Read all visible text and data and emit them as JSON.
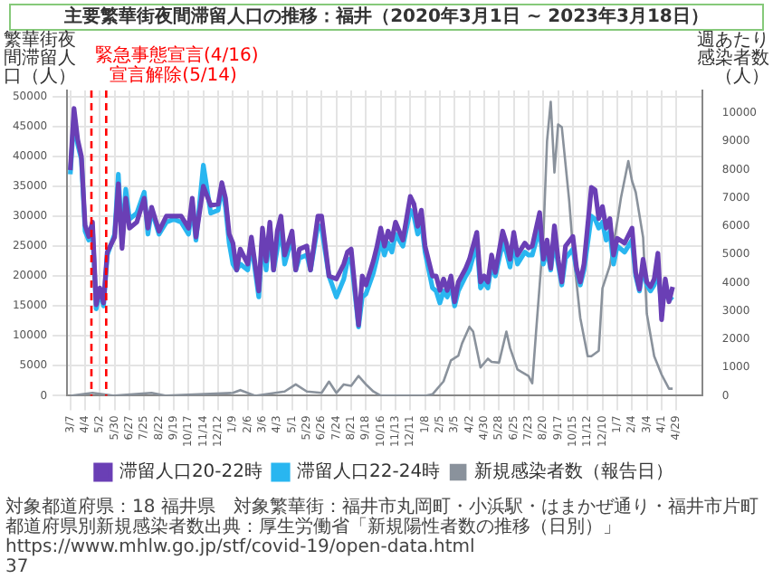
{
  "chart_data": {
    "type": "line",
    "title": "主要繁華街夜間滞留人口の推移：福井（2020年3月1日 ~ 2023年3月18日）",
    "ylabel": "繁華街夜間滞留人口（人）",
    "y2label": "週あたり感染者数（人）",
    "x": [
      "2020-03-07",
      "2020-03-14",
      "2020-03-21",
      "2020-03-28",
      "2020-04-04",
      "2020-04-11",
      "2020-04-18",
      "2020-04-25",
      "2020-05-02",
      "2020-05-09",
      "2020-05-16",
      "2020-05-30",
      "2020-06-06",
      "2020-06-13",
      "2020-06-20",
      "2020-06-27",
      "2020-07-11",
      "2020-07-25",
      "2020-08-01",
      "2020-08-08",
      "2020-08-22",
      "2020-09-05",
      "2020-09-19",
      "2020-10-03",
      "2020-10-17",
      "2020-10-24",
      "2020-10-31",
      "2020-11-14",
      "2020-11-28",
      "2020-12-12",
      "2020-12-19",
      "2020-12-26",
      "2021-01-02",
      "2021-01-09",
      "2021-01-16",
      "2021-01-23",
      "2021-02-06",
      "2021-02-13",
      "2021-02-27",
      "2021-03-06",
      "2021-03-13",
      "2021-03-20",
      "2021-03-27",
      "2021-04-03",
      "2021-04-10",
      "2021-04-17",
      "2021-05-01",
      "2021-05-08",
      "2021-05-15",
      "2021-05-29",
      "2021-06-05",
      "2021-06-19",
      "2021-06-26",
      "2021-07-10",
      "2021-07-24",
      "2021-08-07",
      "2021-08-14",
      "2021-08-21",
      "2021-09-04",
      "2021-09-11",
      "2021-09-18",
      "2021-10-02",
      "2021-10-09",
      "2021-10-16",
      "2021-10-23",
      "2021-10-30",
      "2021-11-06",
      "2021-11-13",
      "2021-11-27",
      "2021-12-11",
      "2021-12-18",
      "2021-12-25",
      "2022-01-01",
      "2022-01-08",
      "2022-01-22",
      "2022-01-29",
      "2022-02-05",
      "2022-02-12",
      "2022-02-19",
      "2022-02-26",
      "2022-03-05",
      "2022-03-12",
      "2022-03-26",
      "2022-04-02",
      "2022-04-16",
      "2022-04-23",
      "2022-04-30",
      "2022-05-07",
      "2022-05-14",
      "2022-05-21",
      "2022-06-04",
      "2022-06-11",
      "2022-06-18",
      "2022-06-25",
      "2022-07-02",
      "2022-07-16",
      "2022-07-23",
      "2022-07-30",
      "2022-08-13",
      "2022-08-20",
      "2022-08-27",
      "2022-09-03",
      "2022-09-10",
      "2022-09-17",
      "2022-09-24",
      "2022-10-01",
      "2022-10-15",
      "2022-10-22",
      "2022-10-29",
      "2022-11-05",
      "2022-11-19",
      "2022-11-26",
      "2022-12-03",
      "2022-12-10",
      "2022-12-17",
      "2022-12-24",
      "2022-12-31",
      "2023-01-07",
      "2023-01-21",
      "2023-02-04",
      "2023-02-11",
      "2023-02-18",
      "2023-02-25",
      "2023-03-04",
      "2023-03-11",
      "2023-03-18",
      "2023-03-25",
      "2023-04-01",
      "2023-04-08",
      "2023-04-15",
      "2023-04-22"
    ],
    "series": [
      {
        "name": "滞留人口20-22時",
        "color": "#6a3fb5",
        "values": [
          37700,
          48000,
          42800,
          40000,
          28500,
          26600,
          29000,
          15200,
          18000,
          15500,
          24000,
          26500,
          35400,
          24600,
          33000,
          28000,
          29000,
          33000,
          28000,
          31500,
          27500,
          30000,
          30000,
          30000,
          28000,
          33000,
          26500,
          35000,
          31800,
          32000,
          35600,
          33000,
          27000,
          25500,
          21000,
          24500,
          22000,
          26500,
          17500,
          28000,
          22500,
          29000,
          21000,
          27500,
          30000,
          23500,
          27500,
          21000,
          24500,
          25000,
          21000,
          30000,
          30000,
          20000,
          19500,
          22000,
          24000,
          24500,
          11800,
          20000,
          18500,
          22500,
          25000,
          28000,
          25000,
          27500,
          26000,
          29000,
          26000,
          33300,
          32000,
          28300,
          31000,
          25000,
          20000,
          20000,
          17600,
          19500,
          17600,
          20000,
          15700,
          19000,
          21300,
          22800,
          27300,
          19000,
          20000,
          19000,
          23500,
          20600,
          27500,
          25500,
          22800,
          27300,
          23500,
          25500,
          24700,
          25000,
          30600,
          22800,
          26000,
          21300,
          28400,
          22800,
          19000,
          25000,
          26600,
          21300,
          19000,
          22000,
          34800,
          34400,
          29600,
          31600,
          28000,
          29600,
          23500,
          26300,
          25500,
          28000,
          20600,
          17800,
          22800,
          19000,
          18200,
          19500,
          23800,
          12700,
          19500,
          15700,
          18200
        ]
      },
      {
        "name": "滞留人口22-24時",
        "color": "#29b6f0",
        "values": [
          37000,
          46500,
          42000,
          39500,
          27500,
          26000,
          28000,
          14500,
          17500,
          15000,
          23500,
          27000,
          37000,
          25500,
          34500,
          29500,
          30500,
          34000,
          27000,
          31000,
          27000,
          29000,
          29500,
          29000,
          27000,
          32000,
          26000,
          38500,
          30500,
          31000,
          35000,
          31500,
          25500,
          22000,
          21000,
          22000,
          21000,
          25500,
          16500,
          27000,
          21000,
          28000,
          21000,
          24500,
          28000,
          22000,
          26500,
          21000,
          23000,
          23500,
          21000,
          28500,
          28000,
          20000,
          16500,
          19500,
          22500,
          23000,
          11500,
          16500,
          17000,
          20500,
          23000,
          26000,
          23500,
          25500,
          24000,
          27000,
          25000,
          31000,
          30000,
          27000,
          29000,
          24000,
          18000,
          17500,
          15500,
          17500,
          16500,
          18500,
          15000,
          17500,
          20000,
          21000,
          25500,
          18000,
          19000,
          18000,
          22000,
          20000,
          25500,
          24000,
          21500,
          25500,
          22000,
          24000,
          23500,
          23500,
          28000,
          22000,
          24500,
          21000,
          26000,
          22000,
          18500,
          23000,
          24500,
          21000,
          18500,
          21000,
          30000,
          29500,
          28000,
          29000,
          26000,
          27500,
          22000,
          25000,
          24000,
          26000,
          20000,
          17500,
          21500,
          18500,
          17500,
          18500,
          21000,
          15000,
          17500,
          16500,
          16000
        ]
      },
      {
        "name": "新規感染者数（報告日）",
        "color": "#8a929c",
        "axis": "y2",
        "x": [
          "2020-03-07",
          "2020-04-18",
          "2020-05-30",
          "2020-08-08",
          "2020-09-05",
          "2021-01-09",
          "2021-01-23",
          "2021-02-20",
          "2021-04-17",
          "2021-05-08",
          "2021-05-29",
          "2021-06-26",
          "2021-07-10",
          "2021-07-24",
          "2021-08-07",
          "2021-08-21",
          "2021-09-04",
          "2021-09-18",
          "2021-10-02",
          "2021-10-16",
          "2022-01-08",
          "2022-01-22",
          "2022-02-12",
          "2022-02-26",
          "2022-03-12",
          "2022-03-19",
          "2022-04-02",
          "2022-04-09",
          "2022-04-23",
          "2022-05-07",
          "2022-05-14",
          "2022-05-28",
          "2022-06-11",
          "2022-06-18",
          "2022-07-02",
          "2022-07-09",
          "2022-07-23",
          "2022-07-30",
          "2022-08-06",
          "2022-08-20",
          "2022-08-27",
          "2022-09-03",
          "2022-09-10",
          "2022-09-17",
          "2022-09-24",
          "2022-10-08",
          "2022-10-15",
          "2022-10-29",
          "2022-11-12",
          "2022-11-19",
          "2022-12-03",
          "2022-12-10",
          "2022-12-24",
          "2023-01-07",
          "2023-01-14",
          "2023-01-28",
          "2023-02-04",
          "2023-02-11",
          "2023-02-25",
          "2023-03-04",
          "2023-03-18",
          "2023-04-01",
          "2023-04-15",
          "2023-04-22"
        ],
        "values": [
          0,
          100,
          0,
          100,
          0,
          100,
          200,
          0,
          150,
          400,
          150,
          100,
          500,
          100,
          400,
          350,
          700,
          400,
          150,
          0,
          0,
          50,
          510,
          1250,
          1420,
          1850,
          2440,
          2270,
          1000,
          1310,
          1200,
          1170,
          2270,
          1690,
          930,
          850,
          700,
          440,
          2200,
          5600,
          9000,
          10400,
          7900,
          9600,
          9500,
          6900,
          5200,
          2750,
          1400,
          1400,
          1590,
          3800,
          4600,
          6150,
          7000,
          8300,
          7600,
          7200,
          5600,
          2900,
          1400,
          750,
          250,
          250
        ]
      }
    ],
    "xlim": [
      "2020-03-01",
      "2023-06-17"
    ],
    "xticks": [
      {
        "value": "2020-03-07",
        "label": "3/7"
      },
      {
        "value": "2020-04-04",
        "label": "4/4"
      },
      {
        "value": "2020-05-02",
        "label": "5/2"
      },
      {
        "value": "2020-05-30",
        "label": "5/30"
      },
      {
        "value": "2020-06-27",
        "label": "6/27"
      },
      {
        "value": "2020-07-25",
        "label": "7/25"
      },
      {
        "value": "2020-08-22",
        "label": "8/22"
      },
      {
        "value": "2020-09-19",
        "label": "9/19"
      },
      {
        "value": "2020-10-17",
        "label": "10/17"
      },
      {
        "value": "2020-11-14",
        "label": "11/14"
      },
      {
        "value": "2020-12-12",
        "label": "12/12"
      },
      {
        "value": "2021-01-09",
        "label": "1/9"
      },
      {
        "value": "2021-02-06",
        "label": "2/6"
      },
      {
        "value": "2021-03-06",
        "label": "3/6"
      },
      {
        "value": "2021-04-03",
        "label": "4/3"
      },
      {
        "value": "2021-05-01",
        "label": "5/1"
      },
      {
        "value": "2021-05-29",
        "label": "5/29"
      },
      {
        "value": "2021-06-26",
        "label": "6/26"
      },
      {
        "value": "2021-07-24",
        "label": "7/24"
      },
      {
        "value": "2021-08-21",
        "label": "8/21"
      },
      {
        "value": "2021-09-18",
        "label": "9/18"
      },
      {
        "value": "2021-10-16",
        "label": "10/16"
      },
      {
        "value": "2021-11-13",
        "label": "11/13"
      },
      {
        "value": "2021-12-11",
        "label": "12/11"
      },
      {
        "value": "2022-01-08",
        "label": "1/8"
      },
      {
        "value": "2022-02-05",
        "label": "2/5"
      },
      {
        "value": "2022-03-05",
        "label": "3/5"
      },
      {
        "value": "2022-04-02",
        "label": "4/2"
      },
      {
        "value": "2022-04-30",
        "label": "4/30"
      },
      {
        "value": "2022-05-28",
        "label": "5/28"
      },
      {
        "value": "2022-06-25",
        "label": "6/25"
      },
      {
        "value": "2022-07-23",
        "label": "7/23"
      },
      {
        "value": "2022-08-20",
        "label": "8/20"
      },
      {
        "value": "2022-09-17",
        "label": "9/17"
      },
      {
        "value": "2022-10-15",
        "label": "10/15"
      },
      {
        "value": "2022-11-12",
        "label": "11/12"
      },
      {
        "value": "2022-12-10",
        "label": "12/10"
      },
      {
        "value": "2023-01-07",
        "label": "1/7"
      },
      {
        "value": "2023-02-04",
        "label": "2/4"
      },
      {
        "value": "2023-03-04",
        "label": "3/4"
      },
      {
        "value": "2023-04-01",
        "label": "4/1"
      },
      {
        "value": "2023-04-29",
        "label": "4/29"
      }
    ],
    "ylim": [
      0,
      51000
    ],
    "yticks": [
      0,
      5000,
      10000,
      15000,
      20000,
      25000,
      30000,
      35000,
      40000,
      45000,
      50000
    ],
    "y2lim": [
      0,
      10800
    ],
    "y2ticks": [
      0,
      1000,
      2000,
      3000,
      4000,
      5000,
      6000,
      7000,
      8000,
      9000,
      10000
    ],
    "ref_lines": [
      {
        "axis": "x",
        "value": "2020-04-16",
        "label": "緊急事態宣言(4/16)",
        "color": "#ff0000",
        "line_style": "dashed"
      },
      {
        "axis": "x",
        "value": "2020-05-14",
        "label": "宣言解除(5/14)",
        "color": "#ff0000",
        "line_style": "dashed"
      }
    ],
    "grid": true,
    "legend": "bottom",
    "marker": "none",
    "line_style": "solid",
    "annotations": [
      "対象都道府県：18 福井県",
      "対象繁華街：福井市丸岡町・小浜駅・はまかぜ通り・福井市片町",
      "都道府県別新規感染者数出典：厚生労働省「新規陽性者数の推移（日別）」https://www.mhlw.go.jp/stf/covid-19/open-data.html",
      "37"
    ]
  }
}
